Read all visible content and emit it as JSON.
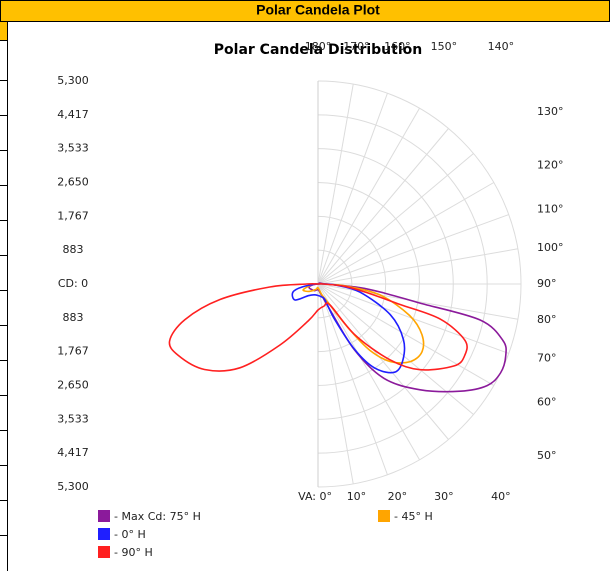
{
  "header": {
    "title": "Polar Candela Plot"
  },
  "chart_data": {
    "type": "polar",
    "title": "Polar Candela Distribution",
    "rlim": [
      0,
      5300
    ],
    "yticks": [
      {
        "value": 5300,
        "label": "5,300"
      },
      {
        "value": 4417,
        "label": "4,417"
      },
      {
        "value": 3533,
        "label": "3,533"
      },
      {
        "value": 2650,
        "label": "2,650"
      },
      {
        "value": 1767,
        "label": "1,767"
      },
      {
        "value": 883,
        "label": "883"
      },
      {
        "value": 0,
        "label": "CD: 0"
      },
      {
        "value": -883,
        "label": "883"
      },
      {
        "value": -1767,
        "label": "1,767"
      },
      {
        "value": -2650,
        "label": "2,650"
      },
      {
        "value": -3533,
        "label": "3,533"
      },
      {
        "value": -4417,
        "label": "4,417"
      },
      {
        "value": -5300,
        "label": "5,300"
      }
    ],
    "angle_ticks": [
      {
        "value": 0,
        "label": "VA: 0°"
      },
      {
        "value": 10,
        "label": "10°"
      },
      {
        "value": 20,
        "label": "20°"
      },
      {
        "value": 30,
        "label": "30°"
      },
      {
        "value": 40,
        "label": "40°"
      },
      {
        "value": 50,
        "label": "50°"
      },
      {
        "value": 60,
        "label": "60°"
      },
      {
        "value": 70,
        "label": "70°"
      },
      {
        "value": 80,
        "label": "80°"
      },
      {
        "value": 90,
        "label": "90°"
      },
      {
        "value": 100,
        "label": "100°"
      },
      {
        "value": 110,
        "label": "110°"
      },
      {
        "value": 120,
        "label": "120°"
      },
      {
        "value": 130,
        "label": "130°"
      },
      {
        "value": 140,
        "label": "140°"
      },
      {
        "value": 150,
        "label": "150°"
      },
      {
        "value": 160,
        "label": "160°"
      },
      {
        "value": 170,
        "label": "170°"
      },
      {
        "value": 180,
        "label": "180°"
      }
    ],
    "grid": true,
    "legend": "bottom-left",
    "series": [
      {
        "name": "- Max Cd: 75° H",
        "color": "#8b1a9b",
        "theta": [
          0,
          15,
          25,
          29,
          35,
          44,
          53,
          59,
          64,
          69,
          73,
          77.5,
          79.4,
          82,
          85,
          90,
          120,
          180,
          270,
          290,
          330
        ],
        "values": [
          150,
          250,
          750,
          1970,
          3010,
          3840,
          4650,
          5150,
          5300,
          5250,
          5050,
          4330,
          2710,
          1800,
          1100,
          200,
          50,
          0,
          80,
          250,
          200
        ]
      },
      {
        "name": "- 45° H",
        "color": "#ffa500",
        "theta": [
          0,
          20,
          29.7,
          34.8,
          38,
          43,
          50,
          57,
          64,
          71,
          80,
          86,
          90,
          180,
          280,
          292,
          310,
          340
        ],
        "values": [
          100,
          300,
          630,
          1460,
          2190,
          2770,
          3150,
          3240,
          3020,
          2530,
          1640,
          700,
          150,
          0,
          200,
          420,
          300,
          150
        ]
      },
      {
        "name": "- 0° H",
        "color": "#1f1fff",
        "theta": [
          0,
          15,
          23.6,
          25.3,
          29.3,
          34,
          41,
          48,
          57,
          67,
          79,
          86,
          90,
          180,
          280,
          288,
          305,
          320,
          340
        ],
        "values": [
          300,
          350,
          460,
          1040,
          1970,
          2650,
          3050,
          2980,
          2660,
          2050,
          1120,
          500,
          150,
          0,
          400,
          690,
          730,
          400,
          300
        ]
      },
      {
        "name": "- 90° H",
        "color": "#ff2020",
        "theta": [
          0,
          15,
          29.7,
          36,
          43.5,
          50,
          59,
          64,
          69,
          74,
          76,
          80,
          85,
          90,
          180,
          270,
          273.6,
          279,
          285,
          291,
          297,
          307,
          317,
          328,
          345
        ],
        "values": [
          680,
          600,
          630,
          1640,
          2730,
          3480,
          4150,
          4260,
          4110,
          3320,
          2210,
          1300,
          700,
          150,
          0,
          300,
          1260,
          2590,
          3600,
          4150,
          4100,
          3710,
          2990,
          1880,
          1000
        ]
      }
    ]
  }
}
